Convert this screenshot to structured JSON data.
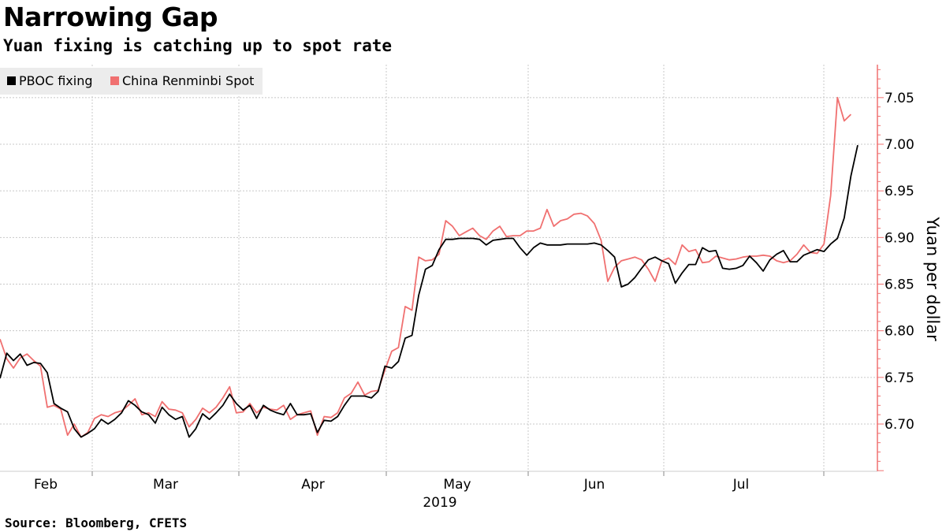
{
  "title": "Narrowing Gap",
  "subtitle": "Yuan fixing is catching up to spot rate",
  "source": "Source: Bloomberg, CFETS",
  "colors": {
    "fixing": "#000000",
    "spot": "#f07070",
    "axis": "#f07070",
    "grid": "#c8c8c8",
    "legend_bg": "#ececec"
  },
  "chart_data": {
    "type": "line",
    "title": "Narrowing Gap",
    "subtitle": "Yuan fixing is catching up to spot rate",
    "ylabel": "Yuan per dollar",
    "xlabel": "2019",
    "ylim": [
      6.65,
      7.08
    ],
    "yticks": [
      "6.70",
      "6.75",
      "6.80",
      "6.85",
      "6.90",
      "6.95",
      "7.00",
      "7.05"
    ],
    "ytick_values": [
      6.7,
      6.75,
      6.8,
      6.85,
      6.9,
      6.95,
      7.0,
      7.05
    ],
    "month_labels": [
      "Feb",
      "Mar",
      "Apr",
      "May",
      "Jun",
      "Jul"
    ],
    "year_label": "2019",
    "grid": true,
    "legend_position": "top-left",
    "series": [
      {
        "name": "PBOC fixing",
        "color": "#000000",
        "values": [
          6.749,
          6.776,
          6.768,
          6.775,
          6.763,
          6.766,
          6.765,
          6.755,
          6.722,
          6.717,
          6.713,
          6.695,
          6.686,
          6.69,
          6.695,
          6.705,
          6.7,
          6.705,
          6.712,
          6.725,
          6.72,
          6.713,
          6.71,
          6.701,
          6.718,
          6.71,
          6.705,
          6.708,
          6.686,
          6.695,
          6.711,
          6.705,
          6.712,
          6.72,
          6.732,
          6.722,
          6.715,
          6.72,
          6.706,
          6.72,
          6.715,
          6.712,
          6.71,
          6.722,
          6.71,
          6.71,
          6.711,
          6.691,
          6.704,
          6.703,
          6.708,
          6.72,
          6.73,
          6.73,
          6.73,
          6.728,
          6.735,
          6.762,
          6.76,
          6.767,
          6.792,
          6.795,
          6.838,
          6.866,
          6.87,
          6.887,
          6.898,
          6.898,
          6.899,
          6.899,
          6.899,
          6.898,
          6.892,
          6.897,
          6.898,
          6.899,
          6.899,
          6.889,
          6.881,
          6.889,
          6.894,
          6.892,
          6.892,
          6.892,
          6.893,
          6.893,
          6.893,
          6.893,
          6.894,
          6.892,
          6.886,
          6.879,
          6.847,
          6.85,
          6.857,
          6.867,
          6.876,
          6.879,
          6.875,
          6.872,
          6.851,
          6.862,
          6.871,
          6.871,
          6.889,
          6.885,
          6.886,
          6.867,
          6.866,
          6.867,
          6.87,
          6.88,
          6.873,
          6.864,
          6.876,
          6.882,
          6.886,
          6.874,
          6.874,
          6.881,
          6.884,
          6.887,
          6.885,
          6.893,
          6.899,
          6.921,
          6.966,
          6.999
        ]
      },
      {
        "name": "China Renminbi Spot",
        "color": "#f07070",
        "values": [
          6.791,
          6.77,
          6.76,
          6.771,
          6.775,
          6.768,
          6.762,
          6.718,
          6.72,
          6.716,
          6.688,
          6.7,
          6.686,
          6.691,
          6.706,
          6.71,
          6.708,
          6.712,
          6.714,
          6.72,
          6.727,
          6.71,
          6.712,
          6.708,
          6.724,
          6.716,
          6.715,
          6.712,
          6.697,
          6.705,
          6.717,
          6.712,
          6.718,
          6.728,
          6.74,
          6.712,
          6.713,
          6.722,
          6.712,
          6.718,
          6.716,
          6.715,
          6.72,
          6.705,
          6.71,
          6.712,
          6.714,
          6.688,
          6.708,
          6.707,
          6.712,
          6.728,
          6.733,
          6.745,
          6.731,
          6.735,
          6.736,
          6.758,
          6.778,
          6.782,
          6.826,
          6.822,
          6.879,
          6.875,
          6.876,
          6.882,
          6.918,
          6.912,
          6.902,
          6.906,
          6.91,
          6.902,
          6.898,
          6.907,
          6.912,
          6.901,
          6.902,
          6.902,
          6.907,
          6.907,
          6.91,
          6.93,
          6.912,
          6.918,
          6.92,
          6.925,
          6.926,
          6.923,
          6.915,
          6.897,
          6.853,
          6.868,
          6.875,
          6.877,
          6.879,
          6.876,
          6.866,
          6.853,
          6.875,
          6.878,
          6.871,
          6.892,
          6.885,
          6.887,
          6.873,
          6.874,
          6.88,
          6.878,
          6.876,
          6.877,
          6.879,
          6.88,
          6.88,
          6.881,
          6.88,
          6.875,
          6.873,
          6.875,
          6.882,
          6.892,
          6.884,
          6.883,
          6.893,
          6.945,
          7.05,
          7.025,
          7.032
        ]
      }
    ]
  }
}
